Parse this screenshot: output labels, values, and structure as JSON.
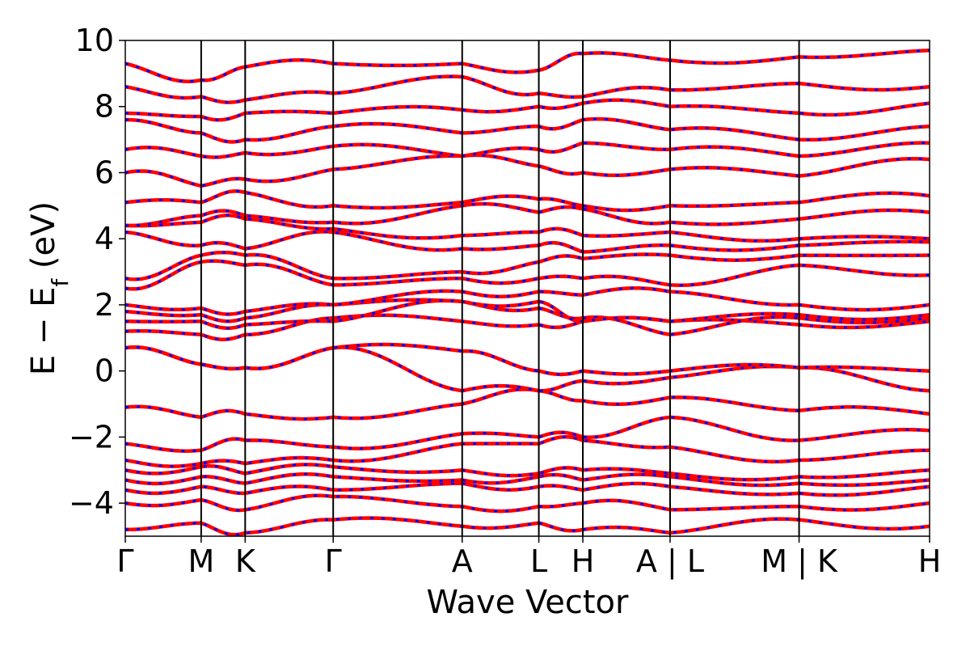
{
  "chart_data": {
    "type": "line",
    "title": "",
    "xlabel": "Wave Vector",
    "ylabel": "E − E",
    "ylabel_subscript": "f",
    "ylabel_unit": "(eV)",
    "ylim": [
      -5,
      10
    ],
    "yticks": [
      -4,
      -2,
      0,
      2,
      4,
      6,
      8,
      10
    ],
    "ytick_labels": [
      "−4",
      "−2",
      "0",
      "2",
      "4",
      "6",
      "8",
      "10"
    ],
    "xlim": [
      0,
      10.6
    ],
    "kpoints": [
      {
        "label": "Γ",
        "x": 0
      },
      {
        "label": "M",
        "x": 1.0
      },
      {
        "label": "K",
        "x": 1.58
      },
      {
        "label": "Γ",
        "x": 2.74
      },
      {
        "label": "A",
        "x": 4.44
      },
      {
        "label": "L",
        "x": 5.45
      },
      {
        "label": "H",
        "x": 6.03
      },
      {
        "label": "A | L",
        "x": 7.18
      },
      {
        "label": "M | K",
        "x": 8.88
      },
      {
        "label": "H",
        "x": 10.6
      }
    ],
    "vlines": [
      1.0,
      1.58,
      2.74,
      4.44,
      5.45,
      6.03,
      7.18,
      8.88
    ],
    "grid": false,
    "legend": "none",
    "series_colors": {
      "primary": "#ff0000",
      "overlay": "#0000ff"
    },
    "bands_approx_energy_levels": [
      [
        -4.8,
        -4.6,
        -4.9,
        -4.5,
        -4.7,
        -4.6,
        -4.8,
        -4.9,
        -4.5,
        -4.7
      ],
      [
        -4.0,
        -3.9,
        -4.2,
        -3.8,
        -4.1,
        -4.1,
        -4.0,
        -4.2,
        -4.1,
        -4.0
      ],
      [
        -3.6,
        -3.5,
        -3.7,
        -3.6,
        -3.4,
        -3.5,
        -3.6,
        -3.5,
        -3.7,
        -3.5
      ],
      [
        -3.3,
        -3.2,
        -3.4,
        -3.2,
        -3.3,
        -3.2,
        -3.3,
        -3.2,
        -3.4,
        -3.3
      ],
      [
        -3.0,
        -2.9,
        -3.1,
        -2.9,
        -3.0,
        -3.1,
        -3.0,
        -3.1,
        -3.2,
        -3.0
      ],
      [
        -2.7,
        -2.8,
        -2.8,
        -2.7,
        -2.2,
        -2.2,
        -2.1,
        -2.3,
        -2.7,
        -2.4
      ],
      [
        -2.2,
        -2.4,
        -2.1,
        -2.3,
        -1.9,
        -2.0,
        -2.0,
        -1.4,
        -2.1,
        -1.8
      ],
      [
        -1.1,
        -1.4,
        -1.3,
        -1.4,
        -1.0,
        -0.6,
        -0.9,
        -0.8,
        -1.2,
        -1.3
      ],
      [
        0.7,
        0.2,
        0.1,
        0.7,
        -0.6,
        -0.6,
        -0.3,
        -0.2,
        0.1,
        -0.6
      ],
      [
        0.7,
        0.2,
        0.1,
        0.7,
        0.6,
        0.0,
        0.0,
        0.0,
        0.1,
        0.0
      ],
      [
        1.2,
        1.1,
        1.1,
        1.6,
        1.5,
        1.4,
        1.5,
        1.5,
        1.4,
        1.5
      ],
      [
        1.5,
        1.5,
        1.4,
        1.5,
        2.1,
        1.9,
        1.6,
        1.1,
        1.6,
        1.6
      ],
      [
        1.8,
        1.7,
        1.6,
        2.0,
        2.1,
        2.1,
        1.5,
        1.5,
        1.7,
        1.7
      ],
      [
        2.0,
        1.9,
        1.8,
        2.0,
        2.4,
        2.4,
        2.3,
        2.4,
        2.0,
        2.0
      ],
      [
        2.5,
        3.3,
        3.2,
        2.6,
        2.8,
        2.8,
        2.8,
        2.6,
        3.2,
        2.9
      ],
      [
        2.8,
        3.5,
        3.5,
        2.8,
        3.0,
        3.3,
        3.4,
        3.5,
        3.5,
        3.5
      ],
      [
        4.2,
        3.8,
        3.7,
        4.2,
        3.7,
        3.8,
        3.6,
        3.8,
        3.8,
        3.9
      ],
      [
        4.4,
        4.5,
        4.6,
        4.3,
        4.1,
        4.2,
        4.1,
        4.2,
        4.0,
        4.0
      ],
      [
        4.4,
        4.7,
        4.7,
        4.5,
        5.0,
        4.8,
        4.9,
        4.5,
        4.6,
        4.8
      ],
      [
        5.1,
        5.1,
        5.4,
        5.0,
        5.1,
        5.2,
        5.0,
        5.0,
        5.1,
        5.3
      ],
      [
        6.0,
        5.6,
        5.8,
        6.1,
        6.5,
        6.2,
        6.0,
        6.1,
        5.9,
        6.4
      ],
      [
        6.7,
        6.5,
        6.6,
        6.8,
        6.5,
        6.7,
        6.9,
        6.7,
        6.5,
        6.9
      ],
      [
        7.6,
        7.2,
        7.0,
        7.4,
        7.2,
        7.4,
        7.6,
        7.3,
        7.0,
        7.4
      ],
      [
        7.8,
        7.7,
        7.8,
        7.8,
        7.9,
        8.0,
        8.1,
        8.0,
        7.8,
        8.1
      ],
      [
        8.6,
        8.3,
        8.2,
        8.4,
        8.9,
        8.4,
        8.3,
        8.5,
        8.7,
        8.6
      ],
      [
        9.3,
        8.8,
        9.2,
        9.3,
        9.3,
        9.1,
        9.6,
        9.4,
        9.5,
        9.7
      ]
    ]
  }
}
